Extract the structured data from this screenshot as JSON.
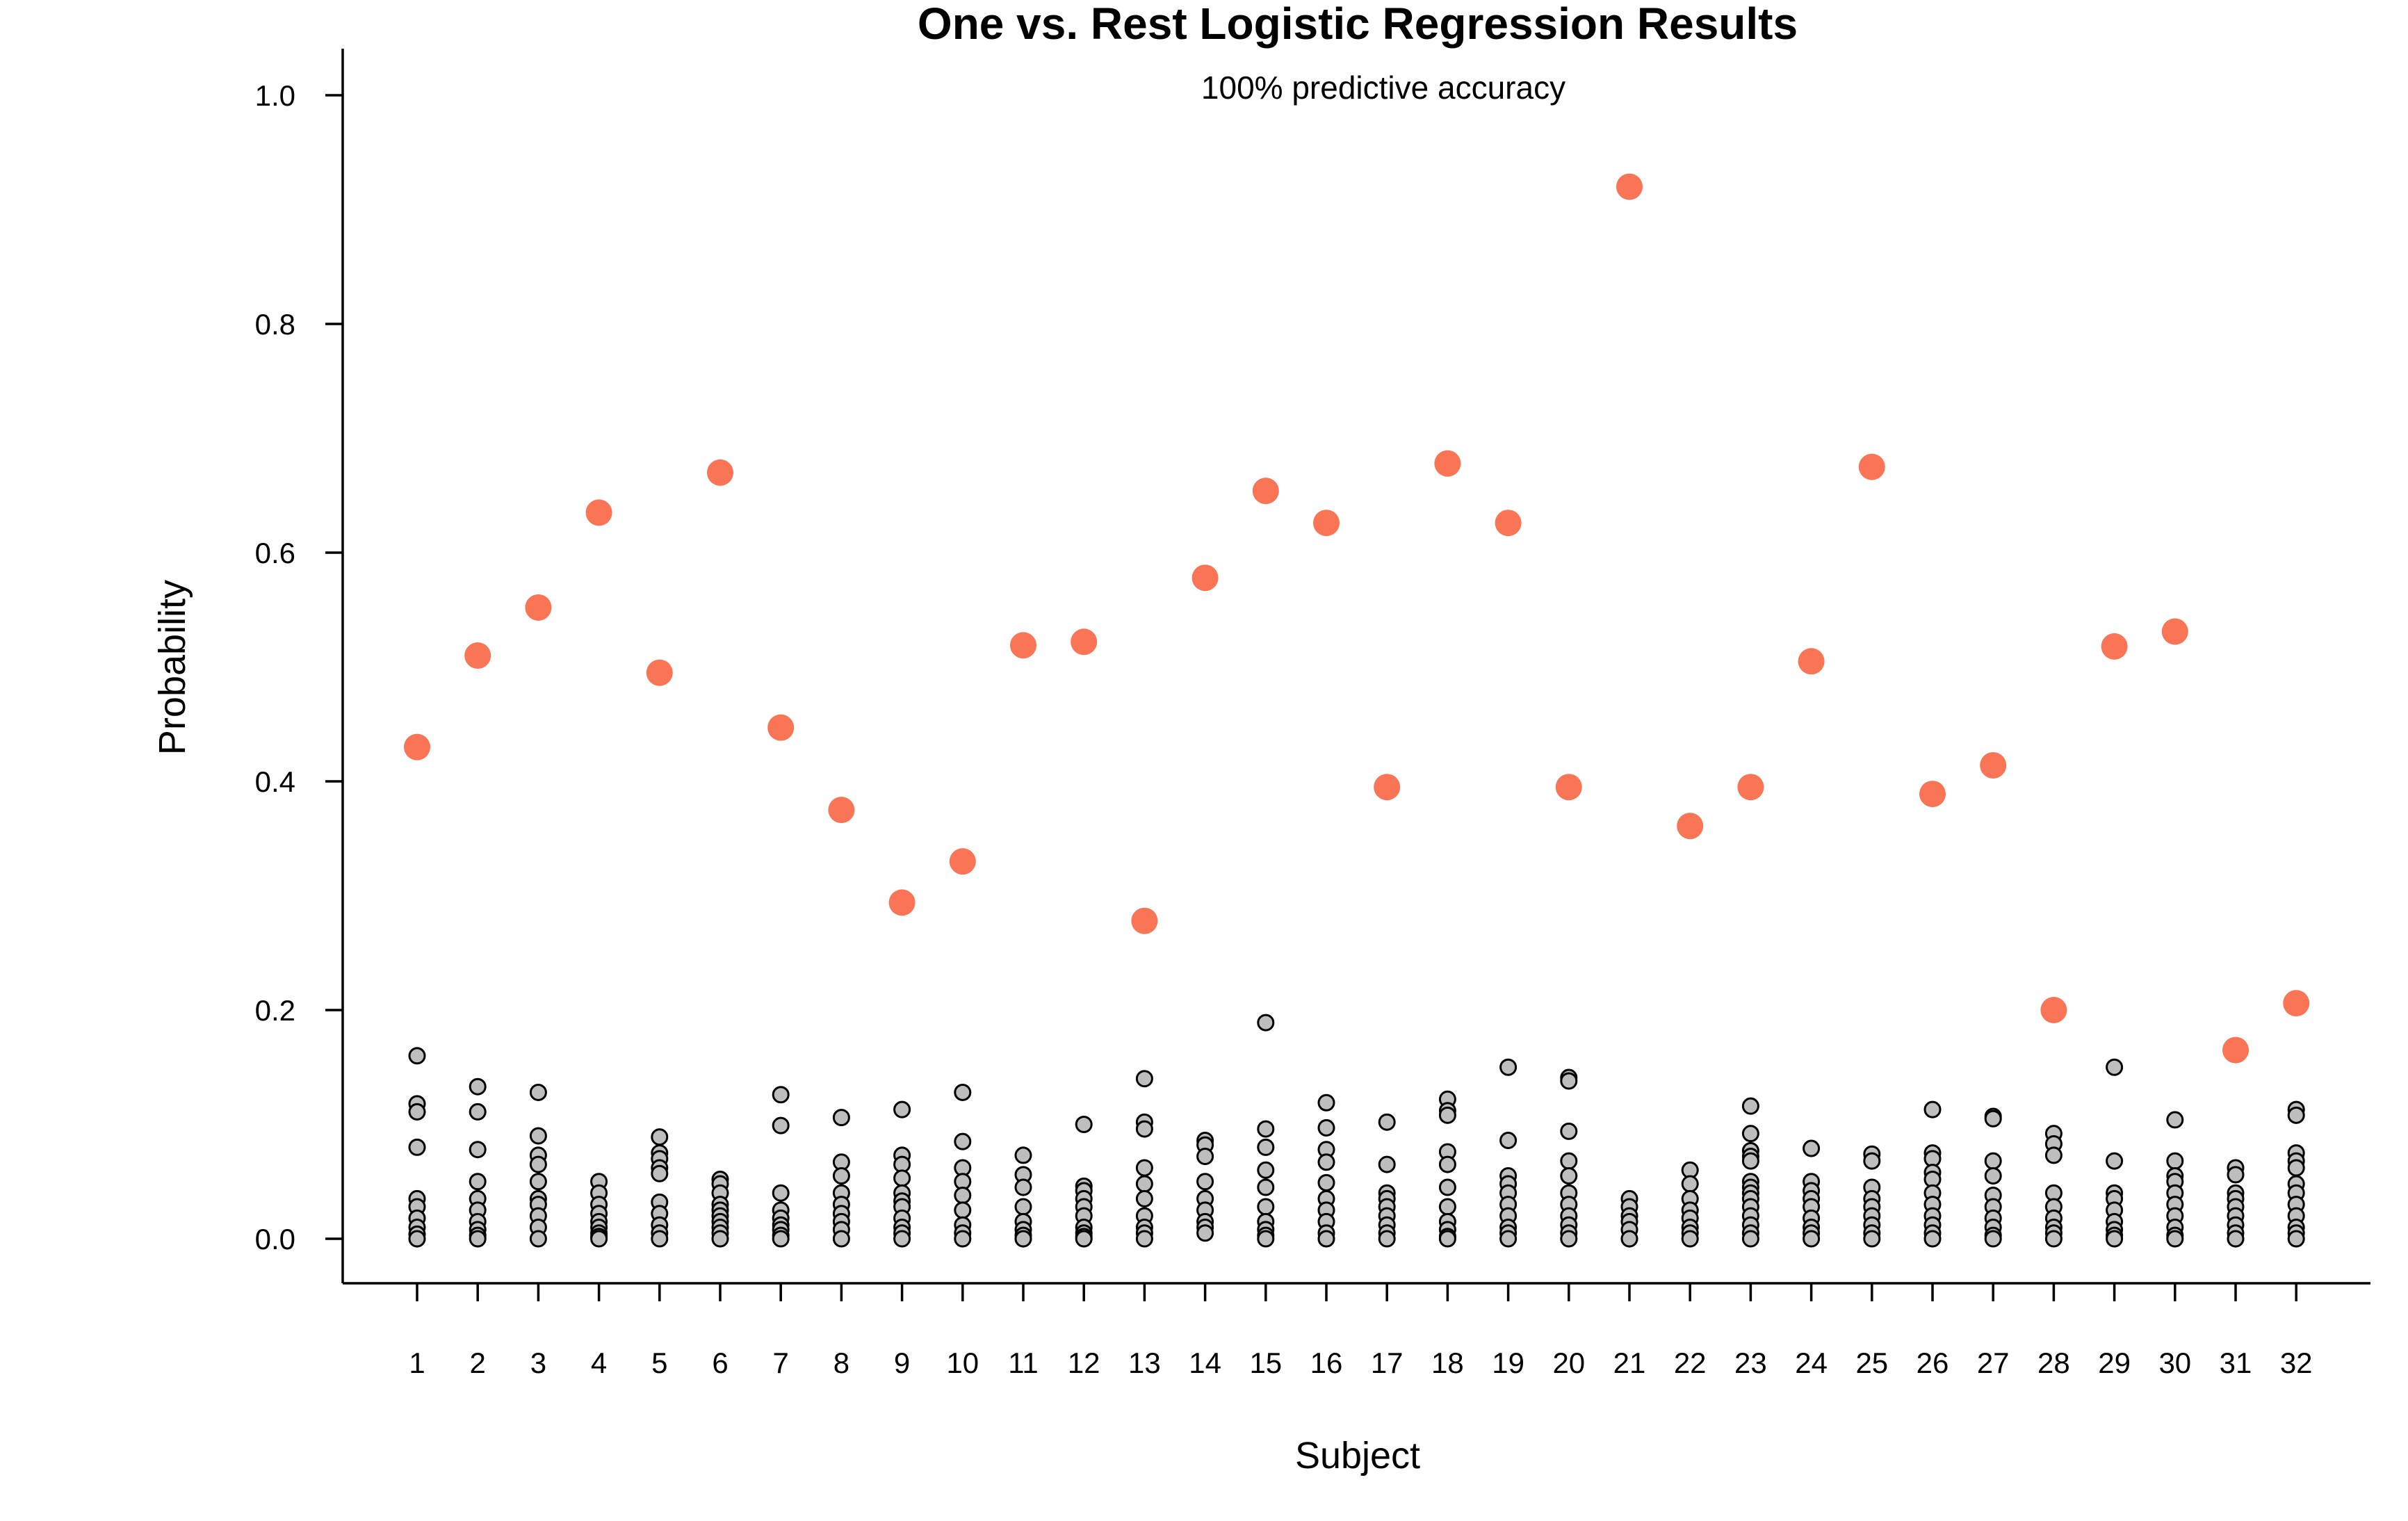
{
  "chart_data": {
    "type": "scatter",
    "title": "One vs. Rest Logistic Regression Results",
    "subtitle": "100% predictive accuracy",
    "xlabel": "Subject",
    "ylabel": "Probability",
    "ylim": [
      0,
      1.04
    ],
    "x_ticks": [
      "1",
      "2",
      "3",
      "4",
      "5",
      "6",
      "7",
      "8",
      "9",
      "10",
      "11",
      "12",
      "13",
      "14",
      "15",
      "16",
      "17",
      "18",
      "19",
      "20",
      "21",
      "22",
      "23",
      "24",
      "25",
      "26",
      "27",
      "28",
      "29",
      "30",
      "31",
      "32"
    ],
    "y_ticks": [
      "0.0",
      "0.2",
      "0.4",
      "0.6",
      "0.8",
      "1.0"
    ],
    "grid": false,
    "colors": {
      "correct_fill": "#FA7456",
      "other_fill": "#BEBEBE",
      "other_stroke": "#000000"
    },
    "series": [
      {
        "values": [
          0.43,
          0.51,
          0.552,
          0.635,
          0.495,
          0.67,
          0.447,
          0.375,
          0.294,
          0.33,
          0.519,
          0.522,
          0.278,
          0.578,
          0.654,
          0.626,
          0.395,
          0.678,
          0.626,
          0.395,
          0.92,
          0.361,
          0.395,
          0.505,
          0.675,
          0.389,
          0.414,
          0.2,
          0.518,
          0.531,
          0.165,
          0.206
        ]
      },
      {
        "values": [
          [
            0.16,
            0.118,
            0.111,
            0.08,
            0.035,
            0.028,
            0.018,
            0.01,
            0.004,
            0.0
          ],
          [
            0.133,
            0.111,
            0.078,
            0.05,
            0.035,
            0.025,
            0.015,
            0.008,
            0.003,
            0.0
          ],
          [
            0.128,
            0.09,
            0.073,
            0.065,
            0.05,
            0.035,
            0.03,
            0.02,
            0.01,
            0.0
          ],
          [
            0.05,
            0.04,
            0.03,
            0.022,
            0.015,
            0.01,
            0.005,
            0.002,
            0.0
          ],
          [
            0.089,
            0.075,
            0.07,
            0.062,
            0.057,
            0.032,
            0.022,
            0.012,
            0.005,
            0.0
          ],
          [
            0.052,
            0.048,
            0.04,
            0.03,
            0.025,
            0.02,
            0.015,
            0.01,
            0.005,
            0.0
          ],
          [
            0.126,
            0.099,
            0.04,
            0.025,
            0.018,
            0.012,
            0.008,
            0.003,
            0.0
          ],
          [
            0.106,
            0.067,
            0.055,
            0.04,
            0.03,
            0.022,
            0.015,
            0.008,
            0.0
          ],
          [
            0.113,
            0.073,
            0.065,
            0.053,
            0.04,
            0.033,
            0.028,
            0.018,
            0.01,
            0.005,
            0.0
          ],
          [
            0.128,
            0.085,
            0.062,
            0.05,
            0.038,
            0.025,
            0.012,
            0.005,
            0.0
          ],
          [
            0.073,
            0.056,
            0.045,
            0.028,
            0.015,
            0.008,
            0.003,
            0.0
          ],
          [
            0.1,
            0.046,
            0.042,
            0.035,
            0.028,
            0.02,
            0.01,
            0.005,
            0.002,
            0.0
          ],
          [
            0.14,
            0.102,
            0.096,
            0.062,
            0.048,
            0.035,
            0.02,
            0.01,
            0.005,
            0.0
          ],
          [
            0.086,
            0.082,
            0.072,
            0.05,
            0.035,
            0.025,
            0.015,
            0.01,
            0.005
          ],
          [
            0.189,
            0.096,
            0.08,
            0.06,
            0.045,
            0.028,
            0.015,
            0.008,
            0.003,
            0.0
          ],
          [
            0.119,
            0.097,
            0.078,
            0.067,
            0.049,
            0.035,
            0.025,
            0.015,
            0.005,
            0.0
          ],
          [
            0.102,
            0.065,
            0.04,
            0.035,
            0.028,
            0.02,
            0.012,
            0.005,
            0.0
          ],
          [
            0.122,
            0.112,
            0.108,
            0.076,
            0.065,
            0.045,
            0.028,
            0.015,
            0.008,
            0.002,
            0.0
          ],
          [
            0.15,
            0.086,
            0.055,
            0.048,
            0.04,
            0.03,
            0.02,
            0.01,
            0.005,
            0.0
          ],
          [
            0.141,
            0.138,
            0.094,
            0.068,
            0.055,
            0.04,
            0.03,
            0.02,
            0.012,
            0.005,
            0.0
          ],
          [
            0.035,
            0.028,
            0.02,
            0.015,
            0.008,
            0.0
          ],
          [
            0.06,
            0.048,
            0.035,
            0.025,
            0.018,
            0.01,
            0.005,
            0.0
          ],
          [
            0.116,
            0.092,
            0.077,
            0.072,
            0.068,
            0.05,
            0.045,
            0.04,
            0.035,
            0.028,
            0.02,
            0.012,
            0.005,
            0.0
          ],
          [
            0.079,
            0.05,
            0.042,
            0.035,
            0.028,
            0.018,
            0.01,
            0.005,
            0.0
          ],
          [
            0.074,
            0.068,
            0.045,
            0.035,
            0.028,
            0.02,
            0.012,
            0.005,
            0.0
          ],
          [
            0.113,
            0.075,
            0.07,
            0.058,
            0.052,
            0.04,
            0.03,
            0.02,
            0.012,
            0.005,
            0.0
          ],
          [
            0.107,
            0.105,
            0.068,
            0.055,
            0.038,
            0.028,
            0.018,
            0.01,
            0.003,
            0.0
          ],
          [
            0.092,
            0.083,
            0.073,
            0.04,
            0.028,
            0.018,
            0.01,
            0.005,
            0.0
          ],
          [
            0.15,
            0.068,
            0.04,
            0.035,
            0.025,
            0.015,
            0.008,
            0.003,
            0.0
          ],
          [
            0.104,
            0.068,
            0.055,
            0.05,
            0.04,
            0.03,
            0.02,
            0.01,
            0.003,
            0.0
          ],
          [
            0.062,
            0.056,
            0.04,
            0.035,
            0.028,
            0.02,
            0.012,
            0.005,
            0.0
          ],
          [
            0.113,
            0.108,
            0.075,
            0.068,
            0.062,
            0.048,
            0.04,
            0.03,
            0.02,
            0.01,
            0.005,
            0.0
          ]
        ]
      }
    ]
  }
}
